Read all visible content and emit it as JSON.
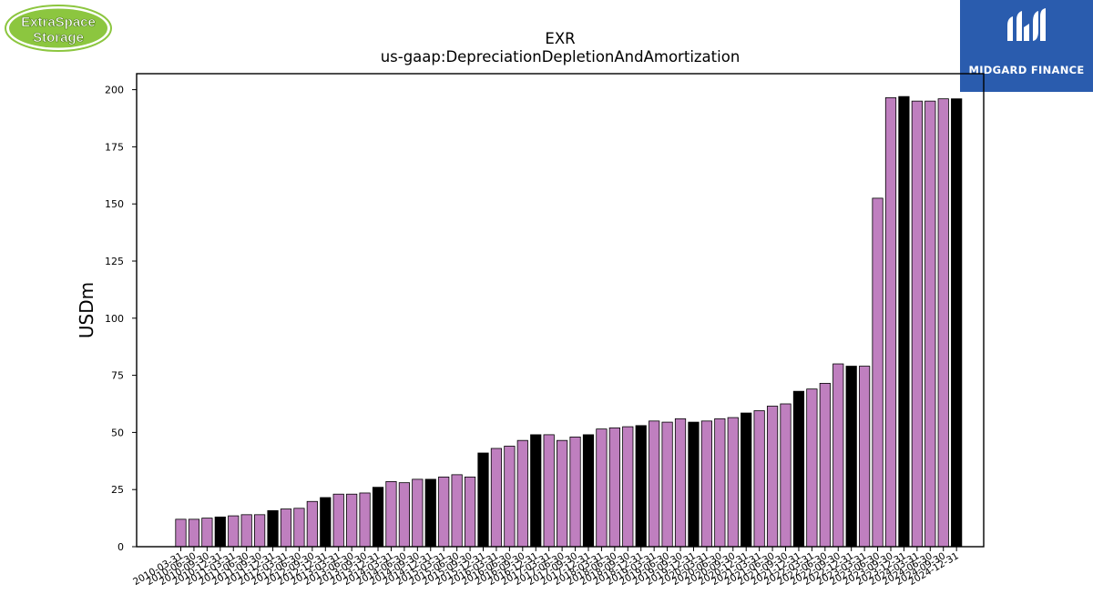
{
  "logos": {
    "left_line1": "ExtraSpace",
    "left_line2": "Storage",
    "right_text": "MIDGARD FINANCE"
  },
  "colors": {
    "bar_fill": "#bf7fbf",
    "bar_highlight": "#000000",
    "logo_left_green": "#8cc63f",
    "logo_right_blue": "#2a5cae"
  },
  "chart_data": {
    "type": "bar",
    "title": "EXR",
    "subtitle": "us-gaap:DepreciationDepletionAndAmortization",
    "xlabel": "",
    "ylabel": "USDm",
    "ylim": [
      0,
      207
    ],
    "yticks": [
      0,
      25,
      50,
      75,
      100,
      125,
      150,
      175,
      200
    ],
    "grid": false,
    "categories": [
      "2010-03-31",
      "2010-06-30",
      "2010-09-30",
      "2010-12-31",
      "2011-03-31",
      "2011-06-30",
      "2011-09-30",
      "2011-12-31",
      "2012-03-31",
      "2012-06-30",
      "2012-09-30",
      "2012-12-31",
      "2013-03-31",
      "2013-06-30",
      "2013-09-30",
      "2013-12-31",
      "2014-03-31",
      "2014-06-30",
      "2014-09-30",
      "2014-12-31",
      "2015-03-31",
      "2015-06-30",
      "2015-09-30",
      "2015-12-31",
      "2016-03-31",
      "2016-06-30",
      "2016-09-30",
      "2016-12-31",
      "2017-03-31",
      "2017-06-30",
      "2017-09-30",
      "2017-12-31",
      "2018-03-31",
      "2018-06-30",
      "2018-09-30",
      "2018-12-31",
      "2019-03-31",
      "2019-06-30",
      "2019-09-30",
      "2019-12-31",
      "2020-03-31",
      "2020-06-30",
      "2020-09-30",
      "2020-12-31",
      "2021-03-31",
      "2021-06-30",
      "2021-09-30",
      "2021-12-31",
      "2022-03-31",
      "2022-06-30",
      "2022-09-30",
      "2022-12-31",
      "2023-03-31",
      "2023-06-30",
      "2023-09-30",
      "2023-12-31",
      "2024-03-31",
      "2024-06-30",
      "2024-09-30",
      "2024-12-31"
    ],
    "values": [
      12.0,
      12.0,
      12.5,
      13.0,
      13.5,
      14.0,
      14.0,
      15.8,
      16.5,
      16.8,
      19.8,
      21.5,
      23.0,
      23.0,
      23.5,
      26.0,
      28.5,
      28.0,
      29.5,
      29.5,
      30.5,
      31.5,
      30.5,
      41.0,
      43.0,
      44.0,
      46.5,
      49.0,
      49.0,
      46.5,
      48.0,
      49.0,
      51.5,
      52.0,
      52.5,
      53.0,
      55.0,
      54.5,
      56.0,
      54.5,
      55.0,
      56.0,
      56.5,
      58.5,
      59.5,
      61.5,
      62.5,
      68.0,
      69.0,
      71.5,
      80.0,
      79.0,
      79.0,
      152.5,
      196.5,
      197.0,
      195.0,
      195.0,
      196.0,
      196.0
    ],
    "highlighted": [
      false,
      false,
      false,
      true,
      false,
      false,
      false,
      true,
      false,
      false,
      false,
      true,
      false,
      false,
      false,
      true,
      false,
      false,
      false,
      true,
      false,
      false,
      false,
      true,
      false,
      false,
      false,
      true,
      false,
      false,
      false,
      true,
      false,
      false,
      false,
      true,
      false,
      false,
      false,
      true,
      false,
      false,
      false,
      true,
      false,
      false,
      false,
      true,
      false,
      false,
      false,
      true,
      false,
      false,
      false,
      true,
      false,
      false,
      false,
      true
    ]
  }
}
